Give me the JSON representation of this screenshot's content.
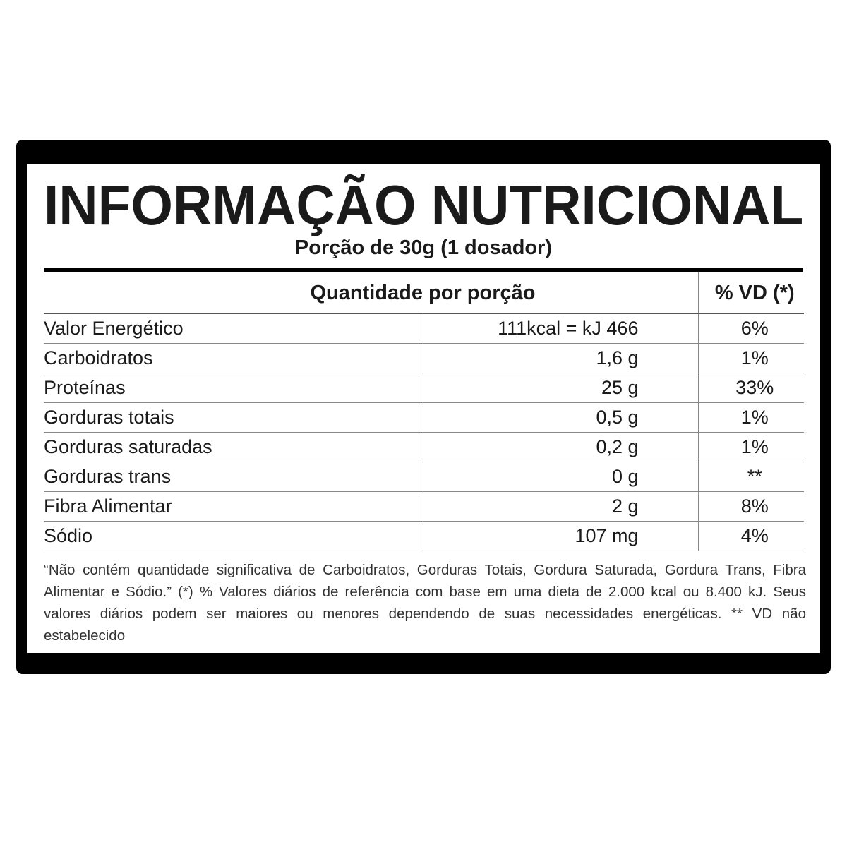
{
  "title": "INFORMAÇÃO NUTRICIONAL",
  "subtitle": "Porção de 30g (1 dosador)",
  "header": {
    "quantity": "Quantidade por porção",
    "vd": "% VD (*)"
  },
  "rows": [
    {
      "name": "Valor Energético",
      "amount": "111kcal = kJ 466",
      "vd": "6%"
    },
    {
      "name": "Carboidratos",
      "amount": "1,6 g",
      "vd": "1%"
    },
    {
      "name": "Proteínas",
      "amount": "25 g",
      "vd": "33%"
    },
    {
      "name": "Gorduras totais",
      "amount": "0,5 g",
      "vd": "1%"
    },
    {
      "name": "Gorduras saturadas",
      "amount": "0,2 g",
      "vd": "1%"
    },
    {
      "name": "Gorduras trans",
      "amount": "0 g",
      "vd": "**"
    },
    {
      "name": "Fibra Alimentar",
      "amount": "2 g",
      "vd": "8%"
    },
    {
      "name": "Sódio",
      "amount": "107 mg",
      "vd": "4%"
    }
  ],
  "footnote": "“Não contém quantidade significativa de Carboidratos, Gorduras Totais, Gordura Saturada, Gordura Trans, Fibra Alimentar e Sódio.” (*) % Valores diários de referência com base em uma dieta de 2.000 kcal ou 8.400 kJ. Seus valores diários podem ser maiores ou menores dependendo de suas necessidades energéticas. ** VD não estabelecido"
}
